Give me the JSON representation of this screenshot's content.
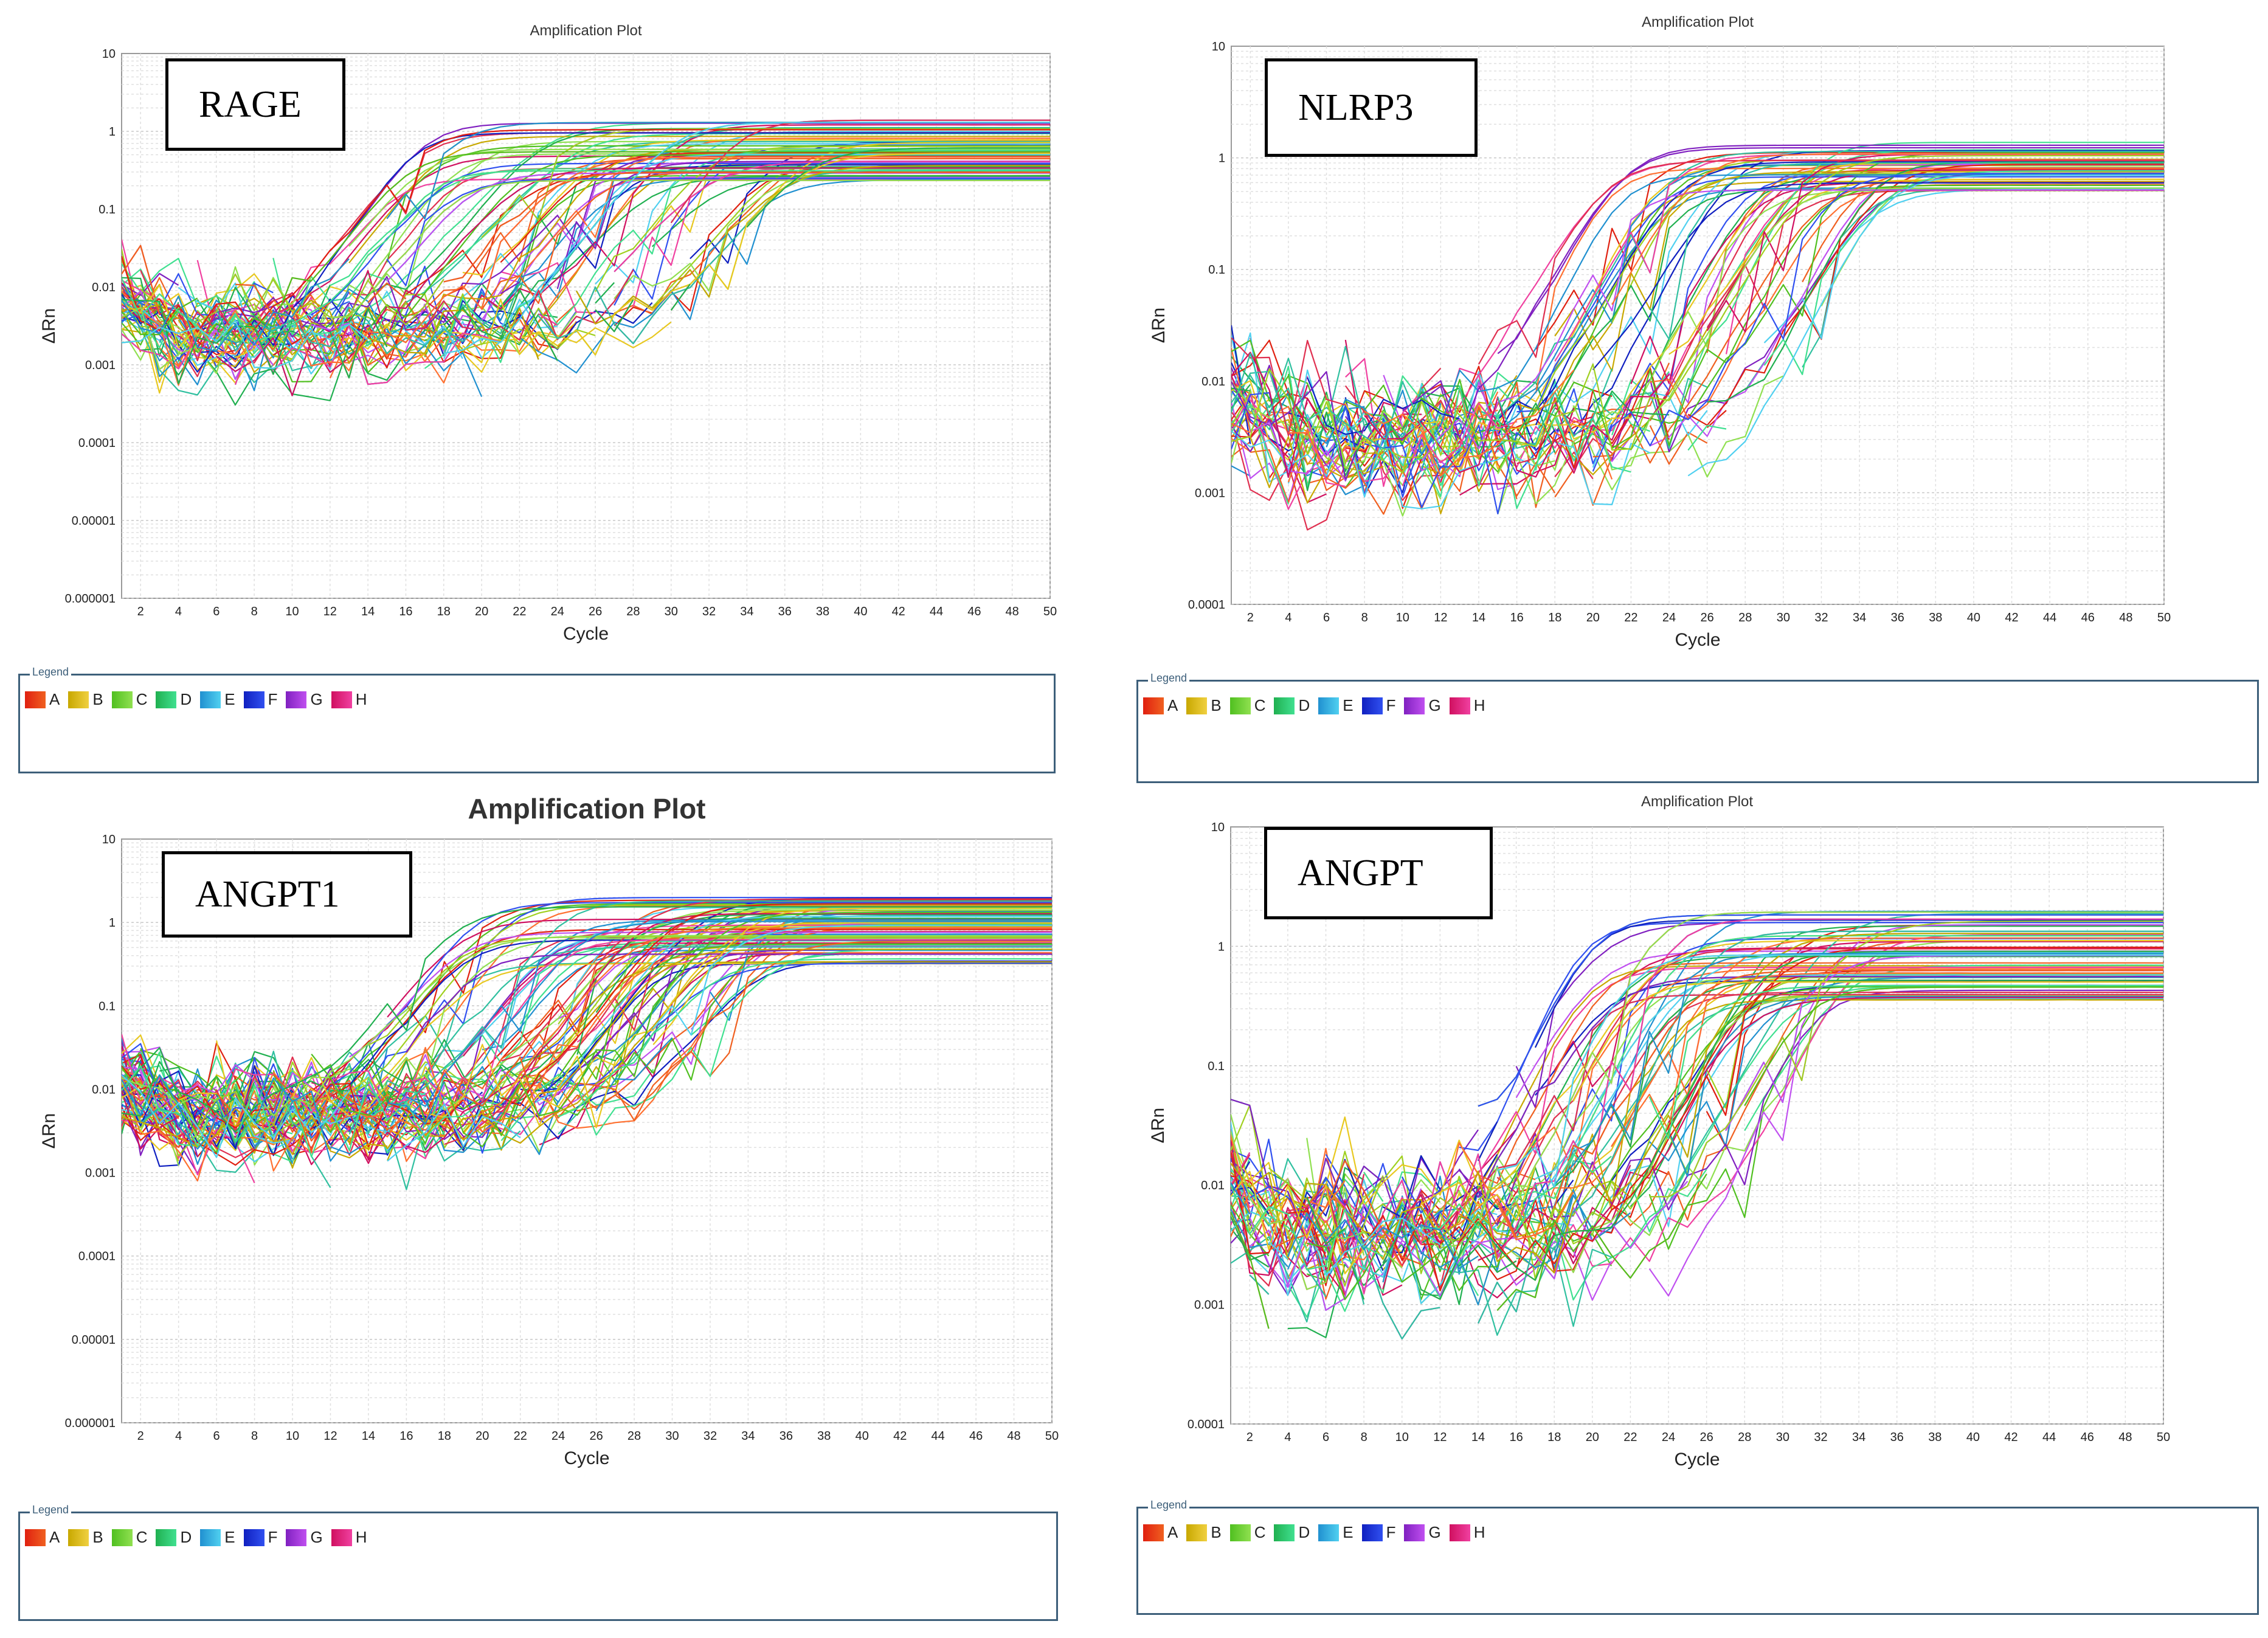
{
  "legend": {
    "caption": "Legend",
    "items": [
      {
        "label": "A",
        "c1": "#e02010",
        "c2": "#f06020"
      },
      {
        "label": "B",
        "c1": "#c8a800",
        "c2": "#f0d040"
      },
      {
        "label": "C",
        "c1": "#50c020",
        "c2": "#90e050"
      },
      {
        "label": "D",
        "c1": "#20b050",
        "c2": "#40e090"
      },
      {
        "label": "E",
        "c1": "#2090d0",
        "c2": "#50d0f0"
      },
      {
        "label": "F",
        "c1": "#1020c0",
        "c2": "#3050f0"
      },
      {
        "label": "G",
        "c1": "#8020c0",
        "c2": "#c050f0"
      },
      {
        "label": "H",
        "c1": "#d01060",
        "c2": "#f040a0"
      }
    ]
  },
  "chart_data": [
    {
      "type": "line",
      "gene": "RAGE",
      "title": "Amplification Plot",
      "title_bold": false,
      "xlabel": "Cycle",
      "ylabel": "ΔRn",
      "yscale": "log",
      "xlim": [
        1,
        50
      ],
      "ylim_exp": [
        -6,
        1
      ],
      "xticks": [
        "2",
        "4",
        "6",
        "8",
        "10",
        "12",
        "14",
        "16",
        "18",
        "20",
        "22",
        "24",
        "26",
        "28",
        "30",
        "32",
        "34",
        "36",
        "38",
        "40",
        "42",
        "44",
        "46",
        "48",
        "50"
      ],
      "yticks": [
        "0.000001",
        "0.00001",
        "0.0001",
        "0.001",
        "0.01",
        "0.1",
        "1",
        "10"
      ],
      "series_count": 90,
      "ct_range": [
        13,
        36
      ],
      "baseline_log": -2.6,
      "plateau_log_range": [
        -0.65,
        0.15
      ],
      "description": "Amplification curves across wells A–H; baseline noise ~0.001–0.01, plateau ~0.2–1.5 ΔRn."
    },
    {
      "type": "line",
      "gene": "NLRP3",
      "title": "Amplification Plot",
      "title_bold": false,
      "xlabel": "Cycle",
      "ylabel": "ΔRn",
      "yscale": "log",
      "xlim": [
        1,
        50
      ],
      "ylim_exp": [
        -4,
        1
      ],
      "xticks": [
        "2",
        "4",
        "6",
        "8",
        "10",
        "12",
        "14",
        "16",
        "18",
        "20",
        "22",
        "24",
        "26",
        "28",
        "30",
        "32",
        "34",
        "36",
        "38",
        "40",
        "42",
        "44",
        "46",
        "48",
        "50"
      ],
      "yticks": [
        "0.0001",
        "0.001",
        "0.01",
        "0.1",
        "1",
        "10"
      ],
      "series_count": 60,
      "ct_range": [
        19,
        34
      ],
      "baseline_log": -2.5,
      "plateau_log_range": [
        -0.3,
        0.15
      ],
      "description": "Amplification curves; baseline ~0.001–0.01, plateau ~0.5–1.3 ΔRn."
    },
    {
      "type": "line",
      "gene": "ANGPT1",
      "title": "Amplification Plot",
      "title_bold": true,
      "xlabel": "Cycle",
      "ylabel": "ΔRn",
      "yscale": "log",
      "xlim": [
        1,
        50
      ],
      "ylim_exp": [
        -6,
        1
      ],
      "xticks": [
        "2",
        "4",
        "6",
        "8",
        "10",
        "12",
        "14",
        "16",
        "18",
        "20",
        "22",
        "24",
        "26",
        "28",
        "30",
        "32",
        "34",
        "36",
        "38",
        "40",
        "42",
        "44",
        "46",
        "48",
        "50"
      ],
      "yticks": [
        "0.000001",
        "0.00001",
        "0.0001",
        "0.001",
        "0.01",
        "0.1",
        "1",
        "10"
      ],
      "series_count": 90,
      "ct_range": [
        17,
        34
      ],
      "baseline_log": -2.3,
      "plateau_log_range": [
        -0.5,
        0.3
      ],
      "description": "Amplification curves; baseline ~0.001–0.01, plateau ~0.3–2 ΔRn."
    },
    {
      "type": "line",
      "gene": "ANGPT",
      "title": "Amplification Plot",
      "title_bold": false,
      "xlabel": "Cycle",
      "ylabel": "ΔRn",
      "yscale": "log",
      "xlim": [
        1,
        50
      ],
      "ylim_exp": [
        -4,
        1
      ],
      "xticks": [
        "2",
        "4",
        "6",
        "8",
        "10",
        "12",
        "14",
        "16",
        "18",
        "20",
        "22",
        "24",
        "26",
        "28",
        "30",
        "32",
        "34",
        "36",
        "38",
        "40",
        "42",
        "44",
        "46",
        "48",
        "50"
      ],
      "yticks": [
        "0.0001",
        "0.001",
        "0.01",
        "0.1",
        "1",
        "10"
      ],
      "series_count": 90,
      "ct_range": [
        17,
        33
      ],
      "baseline_log": -2.4,
      "plateau_log_range": [
        -0.45,
        0.3
      ],
      "description": "Amplification curves; baseline ~0.001–0.01, plateau ~0.3–2 ΔRn."
    }
  ]
}
